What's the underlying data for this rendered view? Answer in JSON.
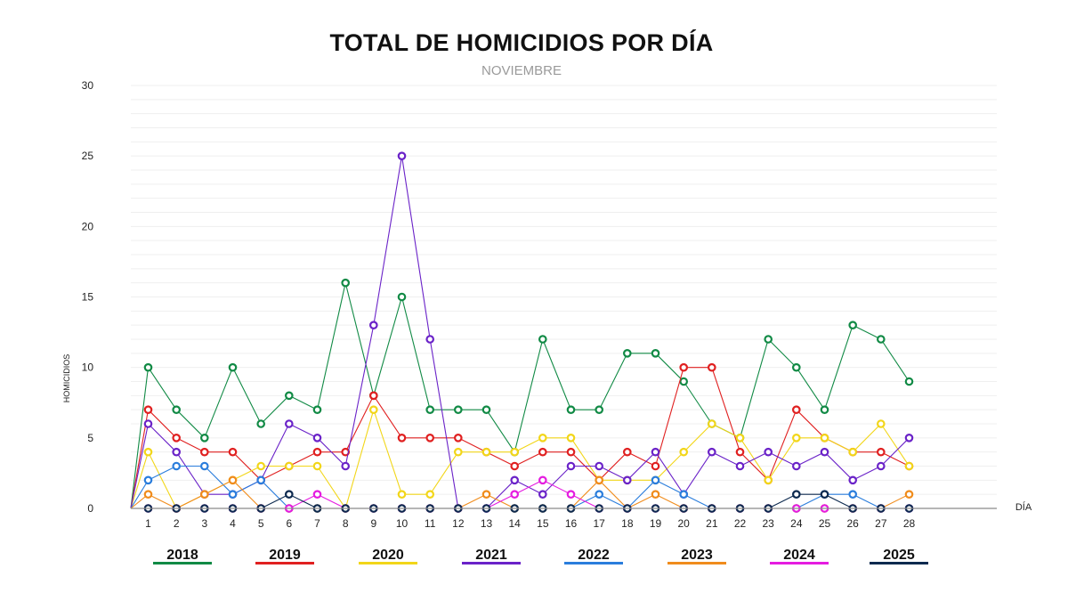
{
  "chart_data": {
    "type": "line",
    "title": "TOTAL DE HOMICIDIOS POR DÍA",
    "subtitle": "NOVIEMBRE",
    "xlabel": "DÍA",
    "ylabel": "HOMICIDIOS",
    "ylim": [
      0,
      30
    ],
    "yticks": [
      0,
      5,
      10,
      15,
      20,
      25,
      30
    ],
    "categories": [
      "1",
      "2",
      "3",
      "4",
      "5",
      "6",
      "7",
      "8",
      "9",
      "10",
      "11",
      "12",
      "13",
      "14",
      "15",
      "16",
      "17",
      "18",
      "19",
      "20",
      "21",
      "22",
      "23",
      "24",
      "25",
      "26",
      "27",
      "28"
    ],
    "series": [
      {
        "name": "2018",
        "color": "#118a45",
        "values": [
          10,
          7,
          5,
          10,
          6,
          8,
          7,
          16,
          8,
          15,
          7,
          7,
          7,
          4,
          12,
          7,
          7,
          11,
          11,
          9,
          6,
          5,
          12,
          10,
          7,
          13,
          12,
          9
        ]
      },
      {
        "name": "2019",
        "color": "#e02020",
        "values": [
          7,
          5,
          4,
          4,
          2,
          3,
          4,
          4,
          8,
          5,
          5,
          5,
          4,
          3,
          4,
          4,
          2,
          4,
          3,
          10,
          10,
          4,
          2,
          7,
          5,
          4,
          4,
          3
        ]
      },
      {
        "name": "2020",
        "color": "#f2d619",
        "values": [
          4,
          0,
          1,
          2,
          3,
          3,
          3,
          0,
          7,
          1,
          1,
          4,
          4,
          4,
          5,
          5,
          2,
          2,
          2,
          4,
          6,
          5,
          2,
          5,
          5,
          4,
          6,
          3
        ]
      },
      {
        "name": "2021",
        "color": "#6a22c8",
        "values": [
          6,
          4,
          1,
          1,
          2,
          6,
          5,
          3,
          13,
          25,
          12,
          0,
          0,
          2,
          1,
          3,
          3,
          2,
          4,
          1,
          4,
          3,
          4,
          3,
          4,
          2,
          3,
          5
        ]
      },
      {
        "name": "2022",
        "color": "#2a7ddc",
        "values": [
          2,
          3,
          3,
          1,
          2,
          0,
          0,
          0,
          0,
          0,
          0,
          0,
          0,
          0,
          0,
          0,
          1,
          0,
          2,
          1,
          0,
          0,
          0,
          0,
          1,
          1,
          0,
          0
        ]
      },
      {
        "name": "2023",
        "color": "#f08c1c",
        "values": [
          1,
          0,
          1,
          2,
          0,
          0,
          0,
          0,
          0,
          0,
          0,
          0,
          1,
          0,
          0,
          0,
          2,
          0,
          1,
          0,
          0,
          0,
          0,
          0,
          0,
          0,
          0,
          1
        ]
      },
      {
        "name": "2024",
        "color": "#e51ce0",
        "values": [
          0,
          0,
          0,
          0,
          0,
          0,
          1,
          0,
          0,
          0,
          0,
          0,
          0,
          1,
          2,
          1,
          0,
          0,
          0,
          0,
          0,
          0,
          0,
          0,
          0,
          0,
          0,
          0
        ]
      },
      {
        "name": "2025",
        "color": "#0d2a4f",
        "values": [
          0,
          0,
          0,
          0,
          0,
          1,
          0,
          0,
          0,
          0,
          0,
          0,
          0,
          0,
          0,
          0,
          0,
          0,
          0,
          0,
          0,
          0,
          0,
          1,
          1,
          0,
          0,
          0
        ]
      }
    ],
    "legend_position": "bottom"
  }
}
